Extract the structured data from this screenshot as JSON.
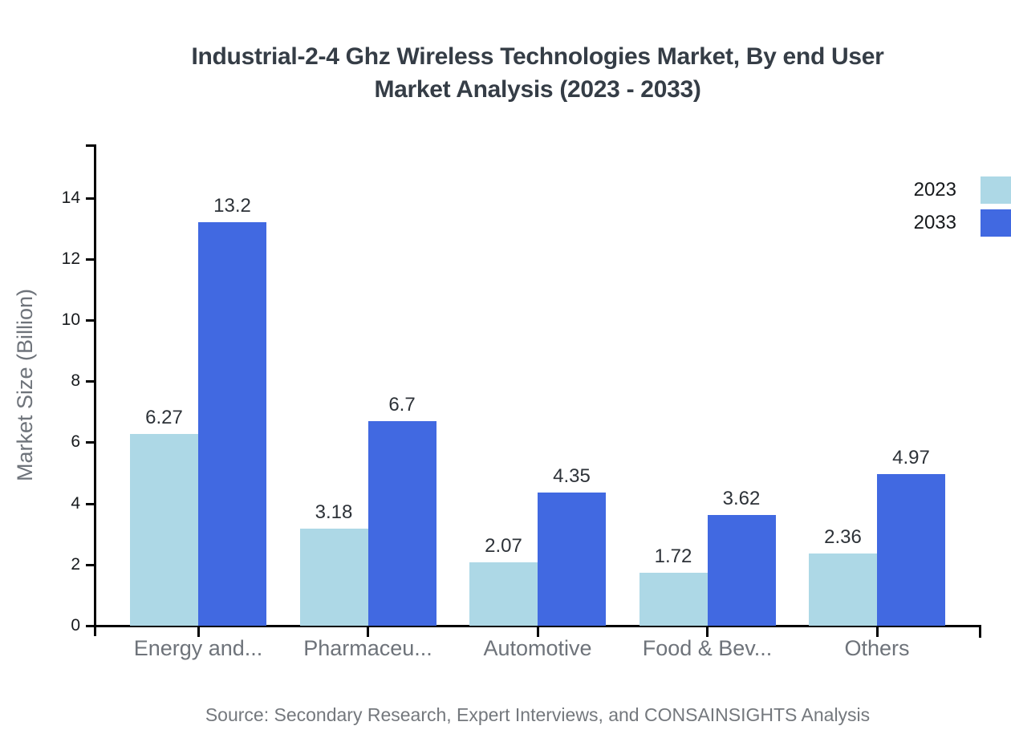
{
  "title": {
    "line1": "Industrial-2-4 Ghz Wireless Technologies Market, By end User",
    "line2": "Market Analysis (2023 - 2033)"
  },
  "source": "Source: Secondary Research, Expert Interviews, and CONSAINSIGHTS Analysis",
  "chart_data": {
    "type": "bar",
    "title": "Industrial-2-4 Ghz Wireless Technologies Market, By end User Market Analysis (2023 - 2033)",
    "categories": [
      "Energy and...",
      "Pharmaceu...",
      "Automotive",
      "Food & Bev...",
      "Others"
    ],
    "series": [
      {
        "name": "2023",
        "color": "#ADD8E6",
        "values": [
          6.27,
          3.18,
          2.07,
          1.72,
          2.36
        ]
      },
      {
        "name": "2033",
        "color": "#4169E1",
        "values": [
          13.2,
          6.7,
          4.35,
          3.62,
          4.97
        ]
      }
    ],
    "xlabel": "",
    "ylabel": "Market Size (Billion)",
    "ylim": [
      0,
      15.5
    ],
    "yticks": [
      0,
      2,
      4,
      6,
      8,
      10,
      12,
      14
    ],
    "grid": false,
    "legend_position": "top-right",
    "value_labels": true,
    "axis_color": "#000000"
  }
}
